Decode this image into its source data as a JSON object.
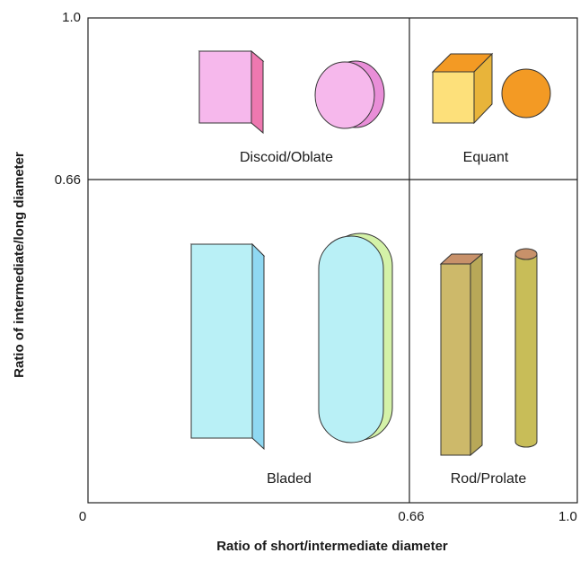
{
  "axes": {
    "x_title": "Ratio of short/intermediate diameter",
    "y_title": "Ratio of intermediate/long diameter",
    "x_ticks": [
      "0",
      "0.66",
      "1.0"
    ],
    "y_ticks": [
      "1.0",
      "0.66"
    ]
  },
  "regions": {
    "top_left": "Discoid/Oblate",
    "top_right": "Equant",
    "bottom_left": "Bladed",
    "bottom_right": "Rod/Prolate"
  },
  "colors": {
    "discoid": "#f6b8ec",
    "equant_box": "#fde07a",
    "equant_sphere": "#f39a24",
    "bladed": "#b9f0f6",
    "rod": "#cdb96a"
  }
}
